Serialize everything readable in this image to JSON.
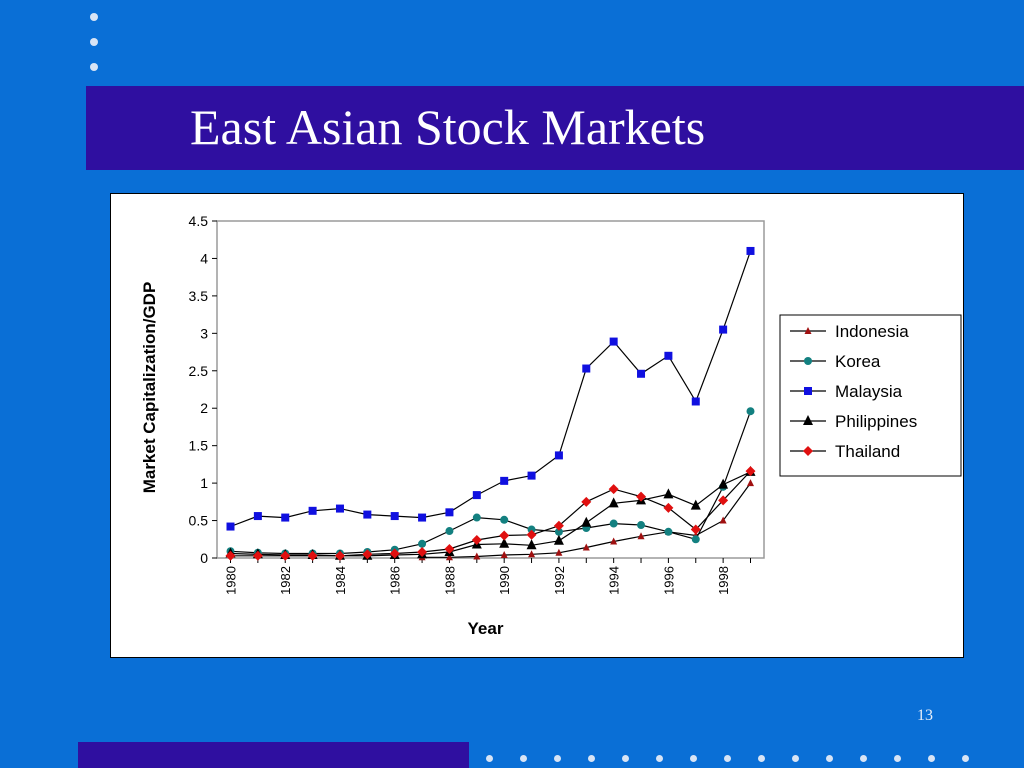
{
  "slide": {
    "title": "East Asian Stock Markets",
    "page_number": "13"
  },
  "colors": {
    "background": "#0a6fd6",
    "title_band": "#2f0fa0",
    "dots": "#d8e4f5"
  },
  "chart_data": {
    "type": "line",
    "title": "",
    "xlabel": "Year",
    "ylabel": "Market Capitalization/GDP",
    "x": [
      1980,
      1981,
      1982,
      1983,
      1984,
      1985,
      1986,
      1987,
      1988,
      1989,
      1990,
      1991,
      1992,
      1993,
      1994,
      1995,
      1996,
      1997,
      1998,
      1999
    ],
    "xticks": [
      "1980",
      "1982",
      "1984",
      "1986",
      "1988",
      "1990",
      "1992",
      "1994",
      "1996",
      "1998"
    ],
    "ylim": [
      0,
      4.5
    ],
    "yticks": [
      "0",
      "0.5",
      "1",
      "1.5",
      "2",
      "2.5",
      "3",
      "3.5",
      "4",
      "4.5"
    ],
    "legend_position": "right",
    "grid": false,
    "series": [
      {
        "name": "Indonesia",
        "color": "#a01010",
        "marker": "triangle-small",
        "values": [
          null,
          null,
          null,
          null,
          null,
          null,
          null,
          0.01,
          0.01,
          0.02,
          0.04,
          0.05,
          0.07,
          0.14,
          0.22,
          0.29,
          0.35,
          0.3,
          0.5,
          1.0
        ]
      },
      {
        "name": "Korea",
        "color": "#138080",
        "marker": "circle",
        "values": [
          0.09,
          0.07,
          0.06,
          0.06,
          0.06,
          0.08,
          0.11,
          0.19,
          0.36,
          0.54,
          0.51,
          0.38,
          0.35,
          0.4,
          0.46,
          0.44,
          0.35,
          0.25,
          0.95,
          1.96
        ]
      },
      {
        "name": "Malaysia",
        "color": "#1010e0",
        "marker": "square",
        "values": [
          0.42,
          0.56,
          0.54,
          0.63,
          0.66,
          0.58,
          0.56,
          0.54,
          0.61,
          0.84,
          1.03,
          1.1,
          1.37,
          2.53,
          2.89,
          2.46,
          2.7,
          2.09,
          3.05,
          4.1
        ]
      },
      {
        "name": "Philippines",
        "color": "#000000",
        "marker": "triangle",
        "values": [
          0.06,
          0.05,
          0.04,
          0.04,
          0.03,
          0.03,
          0.04,
          0.05,
          0.08,
          0.18,
          0.19,
          0.17,
          0.23,
          0.47,
          0.73,
          0.77,
          0.85,
          0.7,
          0.98,
          1.15
        ]
      },
      {
        "name": "Thailand",
        "color": "#e01010",
        "marker": "diamond",
        "values": [
          0.03,
          0.03,
          0.03,
          0.03,
          0.03,
          0.05,
          0.06,
          0.08,
          0.12,
          0.24,
          0.3,
          0.31,
          0.43,
          0.75,
          0.92,
          0.82,
          0.67,
          0.38,
          0.77,
          1.16
        ]
      }
    ]
  }
}
